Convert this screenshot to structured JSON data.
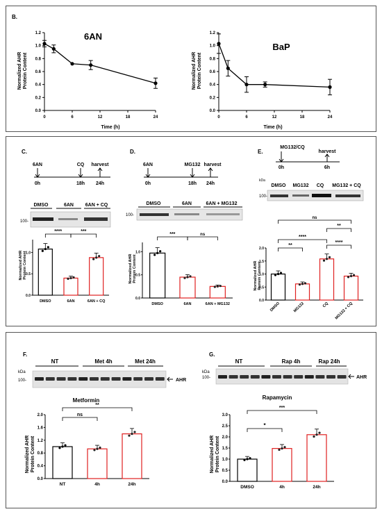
{
  "panelB": {
    "label": "B.",
    "charts": [
      {
        "title": "6AN",
        "ylabel_line1": "Normalized AHR",
        "ylabel_line2": "Protein Content",
        "xlabel": "Time (h)",
        "yticks": [
          "0.0",
          "0.2",
          "0.4",
          "0.6",
          "0.8",
          "1.0",
          "1.2"
        ],
        "xticks": [
          "0",
          "6",
          "12",
          "18",
          "24"
        ],
        "chart_data": {
          "type": "line",
          "x": [
            0,
            2,
            6,
            10,
            24
          ],
          "y": [
            1.03,
            0.95,
            0.72,
            0.7,
            0.42
          ],
          "err": [
            0.05,
            0.06,
            0.0,
            0.07,
            0.08
          ],
          "xlim": [
            0,
            24
          ],
          "ylim": [
            0,
            1.2
          ]
        }
      },
      {
        "title": "BaP",
        "ylabel_line1": "Normalized AHR",
        "ylabel_line2": "Protein Content",
        "xlabel": "Time (h)",
        "yticks": [
          "0.0",
          "0.2",
          "0.4",
          "0.6",
          "0.8",
          "1.0",
          "1.2"
        ],
        "xticks": [
          "0",
          "6",
          "12",
          "18",
          "24"
        ],
        "chart_data": {
          "type": "line",
          "x": [
            0,
            2,
            6,
            10,
            24
          ],
          "y": [
            1.03,
            0.65,
            0.4,
            0.4,
            0.36
          ],
          "err": [
            0.15,
            0.12,
            0.12,
            0.04,
            0.12
          ],
          "xlim": [
            0,
            24
          ],
          "ylim": [
            0,
            1.2
          ]
        }
      }
    ]
  },
  "panelC": {
    "label": "C.",
    "timeline": {
      "t0": "0h",
      "t1": "18h",
      "t2": "24h",
      "e0": "6AN",
      "e1": "CQ",
      "e2": "harvest"
    },
    "blot_labels": [
      "DMSO",
      "6AN",
      "6AN + CQ"
    ],
    "blot_marker": "100-",
    "ylabel_line1": "Normalized AHR",
    "ylabel_line2": "Protein Content",
    "yticks": [
      "0.0",
      "0.5",
      "1.0"
    ],
    "sig": [
      "****",
      "***"
    ],
    "chart_data": {
      "type": "bar",
      "categories": [
        "DMSO",
        "6AN",
        "6AN + CQ"
      ],
      "values": [
        1.08,
        0.4,
        0.88
      ],
      "ylim": [
        0,
        1.3
      ]
    }
  },
  "panelD": {
    "label": "D.",
    "timeline": {
      "t0": "0h",
      "t1": "18h",
      "t2": "24h",
      "e0": "6AN",
      "e1": "MG132",
      "e2": "harvest"
    },
    "blot_labels": [
      "DMSO",
      "6AN",
      "6AN + MG132"
    ],
    "blot_marker": "100-",
    "ylabel_line1": "Normalized AHR",
    "ylabel_line2": "Protein Content",
    "yticks": [
      "0.0",
      "0.5",
      "1.0"
    ],
    "sig": [
      "***",
      "ns"
    ],
    "chart_data": {
      "type": "bar",
      "categories": [
        "DMSO",
        "6AN",
        "6AN + MG132"
      ],
      "values": [
        0.97,
        0.45,
        0.25
      ],
      "ylim": [
        0,
        1.2
      ]
    }
  },
  "panelE": {
    "label": "E.",
    "timeline": {
      "t0": "0h",
      "t1": "6h",
      "e0": "MG132/CQ",
      "e1": "harvest"
    },
    "blot_labels": [
      "DMSO",
      "MG132",
      "CQ",
      "MG132 + CQ"
    ],
    "blot_kda": "kDa",
    "blot_marker": "100-",
    "ylabel_line1": "Normalized AHR",
    "ylabel_line2": "Protein Content",
    "yticks": [
      "0.0",
      "0.5",
      "1.0",
      "1.5",
      "2.0"
    ],
    "sig": [
      "ns",
      "**",
      "****",
      "**",
      "****"
    ],
    "chart_data": {
      "type": "bar",
      "categories": [
        "DMSO",
        "MG132",
        "CQ",
        "MG132 + CQ"
      ],
      "values": [
        1.0,
        0.62,
        1.58,
        0.92
      ],
      "ylim": [
        0,
        2.0
      ]
    }
  },
  "panelF": {
    "label": "F.",
    "blot_groups": [
      "NT",
      "Met 4h",
      "Met 24h"
    ],
    "blot_kda": "kDa",
    "blot_marker": "100-",
    "blot_protein": "AHR",
    "title": "Metformin",
    "ylabel_line1": "Normalized AHR",
    "ylabel_line2": "Protein Content",
    "yticks": [
      "0.0",
      "0.4",
      "0.8",
      "1.2",
      "1.6",
      "2.0"
    ],
    "sig": [
      "ns",
      "**"
    ],
    "chart_data": {
      "type": "bar",
      "categories": [
        "NT",
        "4h",
        "24h"
      ],
      "values": [
        1.0,
        0.93,
        1.4
      ],
      "ylim": [
        0,
        2.0
      ]
    }
  },
  "panelG": {
    "label": "G.",
    "blot_groups": [
      "NT",
      "Rap 4h",
      "Rap 24h"
    ],
    "blot_kda": "kDa",
    "blot_marker": "100-",
    "blot_protein": "AHR",
    "title": "Rapamycin",
    "ylabel_line1": "Normalized AHR",
    "ylabel_line2": "Protein Content",
    "yticks": [
      "0.0",
      "0.5",
      "1.0",
      "1.5",
      "2.0",
      "2.5",
      "3.0"
    ],
    "sig": [
      "*",
      "***"
    ],
    "chart_data": {
      "type": "bar",
      "categories": [
        "DMSO",
        "4h",
        "24h"
      ],
      "values": [
        1.0,
        1.48,
        2.1
      ],
      "ylim": [
        0,
        3.0
      ]
    }
  }
}
